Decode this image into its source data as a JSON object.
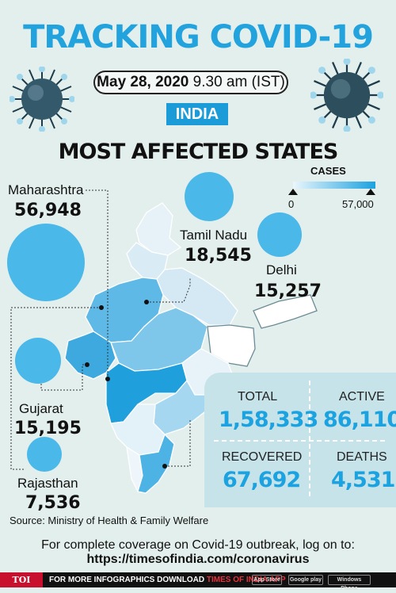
{
  "header": {
    "title": "TRACKING COVID-19",
    "date": "May 28, 2020",
    "time": "9.30 am (IST)",
    "country": "INDIA",
    "subtitle": "MOST AFFECTED STATES"
  },
  "legend": {
    "title": "CASES",
    "min": "0",
    "max": "57,000",
    "colors": [
      "#eaf6fc",
      "#1ba2e0"
    ]
  },
  "states": [
    {
      "name": "Maharashtra",
      "value": "56,948"
    },
    {
      "name": "Tamil Nadu",
      "value": "18,545"
    },
    {
      "name": "Delhi",
      "value": "15,257"
    },
    {
      "name": "Gujarat",
      "value": "15,195"
    },
    {
      "name": "Rajasthan",
      "value": "7,536"
    }
  ],
  "stats": {
    "total_label": "TOTAL",
    "total": "1,58,333",
    "active_label": "ACTIVE",
    "active": "86,110",
    "recovered_label": "RECOVERED",
    "recovered": "67,692",
    "deaths_label": "DEATHS",
    "deaths": "4,531"
  },
  "source": "Source: Ministry of Health & Family Welfare",
  "footer": {
    "text": "For complete coverage on Covid-19 outbreak, log on to:",
    "url": "https://timesofindia.com/coronavirus"
  },
  "bottom_bar": {
    "logo": "TOI",
    "text": "FOR MORE  INFOGRAPHICS DOWNLOAD",
    "brand": "TIMES OF INDIA  APP",
    "app_store": "App Store",
    "google_play": "Google play",
    "windows": "Windows Phone"
  },
  "colors": {
    "accent": "#1ba2e0",
    "background": "#e3efec",
    "panel": "#c5e3e8"
  }
}
